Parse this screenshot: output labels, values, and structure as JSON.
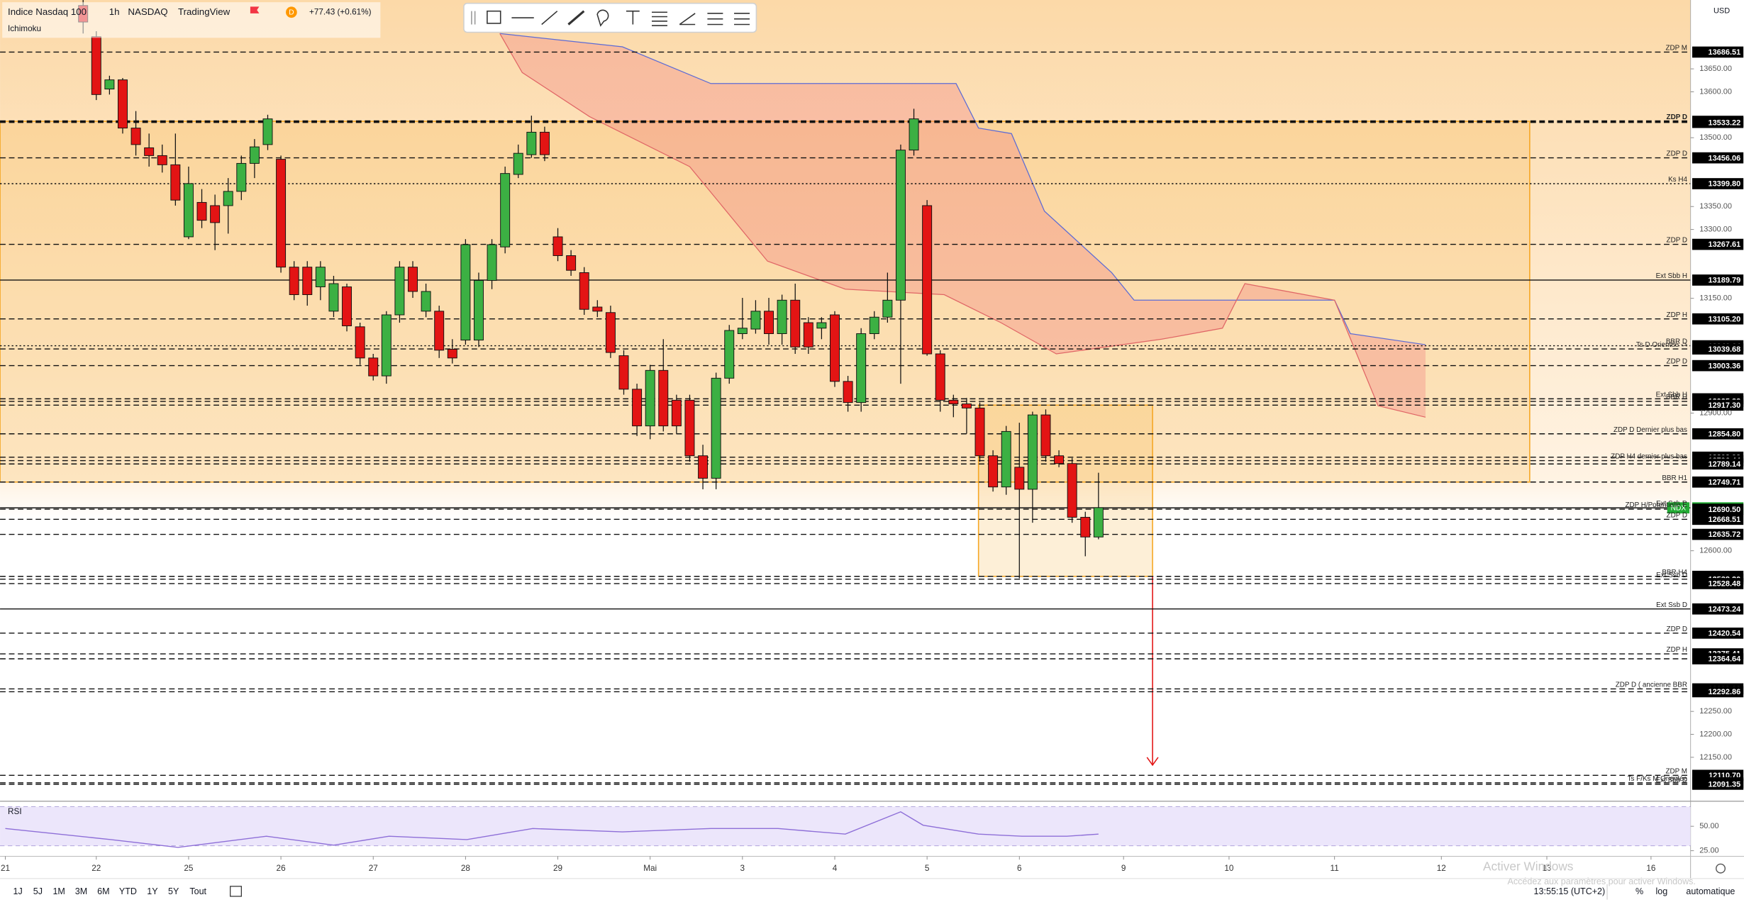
{
  "header": {
    "symbol": "Indice Nasdaq 100",
    "interval": "1h",
    "exchange": "NASDAQ",
    "source": "TradingView",
    "flag": "D",
    "change": "+77.43 (+0.61%)",
    "indicator": "Ichimoku"
  },
  "currency": "USD",
  "timeframes": [
    "1J",
    "5J",
    "1M",
    "3M",
    "6M",
    "YTD",
    "1Y",
    "5Y",
    "Tout"
  ],
  "clock": "13:55:15 (UTC+2)",
  "scale_buttons": [
    "%",
    "log",
    "automatique"
  ],
  "watermark": {
    "title": "Activer Windows",
    "text": "Accédez aux paramètres pour activer Windows."
  },
  "chart_data": [
    {
      "type": "candlestick",
      "up_color": "#3cb043",
      "down_color": "#e31414",
      "open": [
        13788,
        13720,
        13606,
        13626,
        13521,
        13478,
        13461,
        13441,
        13284,
        13359,
        13352,
        13352,
        13383,
        13444,
        13485,
        13453,
        13218,
        13218,
        13175,
        13122,
        13175,
        13088,
        13020,
        12981,
        13114,
        13218,
        13122,
        13122,
        13039,
        13059,
        13059,
        13189,
        13262,
        13420,
        13463,
        13512,
        13284,
        13243,
        13206,
        13131,
        13119,
        13025,
        12952,
        12872,
        12993,
        12928,
        12928,
        12807,
        12758,
        12976,
        13073,
        13083,
        13122,
        13073,
        13146,
        13097,
        13085,
        13114,
        12969,
        12923,
        13073,
        13109,
        13146,
        13473,
        13352,
        13029,
        12928,
        12920,
        12911,
        12807,
        12739,
        12782,
        12734,
        12896,
        12807,
        12790,
        12673,
        12630
      ],
      "high": [
        13800,
        13732,
        13635,
        13630,
        13558,
        13509,
        13485,
        13509,
        13437,
        13388,
        13376,
        13412,
        13461,
        13497,
        13550,
        13461,
        13231,
        13231,
        13231,
        13199,
        13182,
        13097,
        13029,
        13122,
        13231,
        13231,
        13182,
        13134,
        13061,
        13279,
        13206,
        13279,
        13437,
        13485,
        13548,
        13524,
        13303,
        13255,
        13218,
        13146,
        13134,
        13037,
        12964,
        13005,
        13061,
        12940,
        12940,
        12831,
        12988,
        13092,
        13151,
        13146,
        13151,
        13158,
        13182,
        13109,
        13109,
        13122,
        12981,
        13085,
        13122,
        13206,
        13485,
        13563,
        13364,
        13037,
        12940,
        12933,
        12923,
        12819,
        12872,
        12879,
        12903,
        12908,
        12819,
        12802,
        12685,
        12770
      ],
      "low": [
        13727,
        13582,
        13594,
        13509,
        13461,
        13437,
        13424,
        13352,
        13279,
        13303,
        13255,
        13291,
        13364,
        13412,
        13473,
        13206,
        13146,
        13134,
        13146,
        13109,
        13078,
        13005,
        12971,
        12964,
        13097,
        13151,
        13109,
        13020,
        13008,
        13049,
        13044,
        13170,
        13248,
        13412,
        13456,
        13449,
        13231,
        13199,
        13114,
        13109,
        13020,
        12940,
        12850,
        12843,
        12860,
        12855,
        12794,
        12734,
        12734,
        12964,
        13061,
        13073,
        13049,
        13049,
        13029,
        13029,
        13061,
        12957,
        12903,
        12903,
        13061,
        13097,
        12964,
        13461,
        13025,
        12903,
        12891,
        12855,
        12794,
        12729,
        12722,
        12540,
        12661,
        12794,
        12782,
        12661,
        12588,
        12625
      ],
      "close": [
        13752,
        13594,
        13626,
        13521,
        13485,
        13461,
        13441,
        13364,
        13400,
        13320,
        13315,
        13383,
        13444,
        13480,
        13541,
        13218,
        13158,
        13158,
        13218,
        13182,
        13090,
        13020,
        12981,
        13114,
        13218,
        13165,
        13165,
        13037,
        13020,
        13267,
        13189,
        13267,
        13422,
        13466,
        13512,
        13463,
        13243,
        13211,
        13126,
        13122,
        13032,
        12952,
        12872,
        12993,
        12872,
        12872,
        12807,
        12758,
        12976,
        13080,
        13085,
        13122,
        13073,
        13146,
        13044,
        13044,
        13097,
        12969,
        12923,
        13073,
        13109,
        13146,
        13473,
        13541,
        13029,
        12928,
        12920,
        12911,
        12807,
        12739,
        12860,
        12734,
        12896,
        12807,
        12790,
        12673,
        12630,
        12694
      ],
      "xlim": [
        -6.3,
        121.9
      ],
      "xticks": [
        {
          "value": -5.9,
          "label": "21"
        },
        {
          "value": 1.0,
          "label": "22"
        },
        {
          "value": 8.0,
          "label": "25"
        },
        {
          "value": 15.0,
          "label": "26"
        },
        {
          "value": 22.0,
          "label": "27"
        },
        {
          "value": 29.0,
          "label": "28"
        },
        {
          "value": 36.0,
          "label": "29"
        },
        {
          "value": 43.0,
          "label": "Mai"
        },
        {
          "value": 50.0,
          "label": "3"
        },
        {
          "value": 57.0,
          "label": "4"
        },
        {
          "value": 64.0,
          "label": "5"
        },
        {
          "value": 71.0,
          "label": "6"
        },
        {
          "value": 78.9,
          "label": "9"
        },
        {
          "value": 86.9,
          "label": "10"
        },
        {
          "value": 94.9,
          "label": "11"
        },
        {
          "value": 103.0,
          "label": "12"
        },
        {
          "value": 111.0,
          "label": "13"
        },
        {
          "value": 118.9,
          "label": "16"
        }
      ],
      "ylim": [
        12055,
        13800
      ],
      "yticks": [
        {
          "value": 13650,
          "label": "13650.00"
        },
        {
          "value": 13600,
          "label": "13600.00"
        },
        {
          "value": 13500,
          "label": "13500.00"
        },
        {
          "value": 13350,
          "label": "13350.00"
        },
        {
          "value": 13300,
          "label": "13300.00"
        },
        {
          "value": 13150,
          "label": "13150.00"
        },
        {
          "value": 12900,
          "label": "12900.00"
        },
        {
          "value": 12600,
          "label": "12600.00"
        },
        {
          "value": 12250,
          "label": "12250.00"
        },
        {
          "value": 12200,
          "label": "12200.00"
        },
        {
          "value": 12150,
          "label": "12150.00"
        }
      ],
      "last_tag": "NDX",
      "last_color": "#22ab34",
      "levels": [
        {
          "name": "ZDP M",
          "price": {
            "value": 13686.51,
            "label": "13686.51"
          },
          "style": "dashed"
        },
        {
          "name": "ZDP D",
          "price": {
            "value": 13535.71,
            "label": "13535.71"
          },
          "style": "bold"
        },
        {
          "price": {
            "value": 13533.22,
            "label": "13533.22"
          },
          "style": "dashed"
        },
        {
          "name": "ZDP D",
          "price": {
            "value": 13456.06,
            "label": "13456.06"
          },
          "style": "dashed"
        },
        {
          "name": "Ks H4",
          "price": {
            "value": 13399.8,
            "label": "13399.80"
          },
          "style": "dotted"
        },
        {
          "name": "ZDP D",
          "price": {
            "value": 13267.61,
            "label": "13267.61"
          },
          "style": "dashed"
        },
        {
          "name": "Ext Sbb H",
          "price": {
            "value": 13189.79,
            "label": "13189.79"
          },
          "style": "solid"
        },
        {
          "name": "ZDP H",
          "price": {
            "value": 13105.2,
            "label": "13105.20"
          },
          "style": "dashed"
        },
        {
          "name": "BBR D",
          "price": {
            "value": 13046.64,
            "label": "13046.64"
          },
          "style": "dotted"
        },
        {
          "name": "Ts D Orientée ->",
          "price": {
            "value": 13039.68,
            "label": "13039.68"
          },
          "style": "dashed"
        },
        {
          "name": "ZDP D",
          "price": {
            "value": 13003.36,
            "label": "13003.36"
          },
          "style": "dashed"
        },
        {
          "name": "Ext Sbb H",
          "price": {
            "value": 12931.08,
            "label": "12931.08"
          },
          "style": "dashed"
        },
        {
          "name": "BBR H",
          "price": {
            "value": 12925.38,
            "label": "12925.38"
          },
          "style": "dashed"
        },
        {
          "price": {
            "value": 12917.3,
            "label": "12917.30"
          },
          "style": "dashed"
        },
        {
          "name": "ZDP D Dernier plus bas",
          "price": {
            "value": 12854.8,
            "label": "12854.80"
          },
          "style": "dashed"
        },
        {
          "price": {
            "value": 12803.93,
            "label": "12803.93"
          },
          "style": "dashed"
        },
        {
          "name": "ZDP H4 dernier plus bas",
          "price": {
            "value": 12796.44,
            "label": "12796.44"
          },
          "style": "dashed"
        },
        {
          "price": {
            "value": 12789.14,
            "label": "12789.14"
          },
          "style": "dashed"
        },
        {
          "name": "BBR H1",
          "price": {
            "value": 12749.71,
            "label": "12749.71"
          },
          "style": "dashed"
        },
        {
          "name": "Ext Ssb D",
          "price": {
            "value": 12693.53,
            "label": "12693.53"
          },
          "style": "solid",
          "current": true
        },
        {
          "name": "ZDP H/Potentielle E",
          "price": {
            "value": 12690.5,
            "label": "12690.50"
          },
          "style": "dashed"
        },
        {
          "name": "ZDP D",
          "price": {
            "value": 12668.51,
            "label": "12668.51"
          },
          "style": "dashed"
        },
        {
          "price": {
            "value": 12635.72,
            "label": "12635.72"
          },
          "style": "dashed"
        },
        {
          "name": "BBR H4",
          "price": {
            "value": 12544.26,
            "label": "12544.26"
          },
          "style": "dashed"
        },
        {
          "name": "Ext Ssb D",
          "price": {
            "value": 12538.2,
            "label": "12538.20"
          },
          "style": "dashed"
        },
        {
          "price": {
            "value": 12528.48,
            "label": "12528.48"
          },
          "style": "dashed"
        },
        {
          "name": "Ext Ssb D",
          "price": {
            "value": 12473.24,
            "label": "12473.24"
          },
          "style": "solid"
        },
        {
          "name": "ZDP D",
          "price": {
            "value": 12420.54,
            "label": "12420.54"
          },
          "style": "dashed"
        },
        {
          "name": "ZDP H",
          "price": {
            "value": 12375.41,
            "label": "12375.41"
          },
          "style": "dashed"
        },
        {
          "price": {
            "value": 12364.64,
            "label": "12364.64"
          },
          "style": "dashed"
        },
        {
          "name": "ZDP D ( ancienne BBR",
          "price": {
            "value": 12299.08,
            "label": "12299.08"
          },
          "style": "dashed"
        },
        {
          "price": {
            "value": 12292.86,
            "label": "12292.86"
          },
          "style": "dashed"
        },
        {
          "name": "ZDP M",
          "price": {
            "value": 12110.7,
            "label": "12110.70"
          },
          "style": "dashed"
        },
        {
          "name": "Ts F/Ks M Orientée",
          "price": {
            "value": 12094.52,
            "label": "12094.52"
          },
          "style": "dashed"
        },
        {
          "name": "Ext Sbb D",
          "price": {
            "value": 12091.35,
            "label": "12091.35"
          },
          "style": "dashed"
        }
      ],
      "zones": [
        {
          "x": [
            -6.3,
            109.7
          ],
          "y": [
            13535.71,
            12749.71
          ],
          "color": "#f5a623"
        },
        {
          "x": [
            67.9,
            81.1
          ],
          "y": [
            12917.3,
            12544.26
          ],
          "color": "#f5a623"
        }
      ],
      "arrow": {
        "x": 81.1,
        "from": 12544.26,
        "to": 12133,
        "color": "#e31414"
      },
      "cloud": {
        "color": "#f08080",
        "upper": {
          "x": [
            31.6,
            40.9,
            47.6,
            66.2,
            67.9,
            70.4,
            72.9,
            78.0,
            79.7,
            94.9,
            96.1,
            101.8
          ],
          "values": [
            13727,
            13698,
            13618,
            13618,
            13521,
            13509,
            13340,
            13206,
            13146,
            13146,
            13073,
            13049
          ],
          "color": "#5b6bd6"
        },
        "lower": {
          "x": [
            31.6,
            33.3,
            38.4,
            46.0,
            51.9,
            57.8,
            65.3,
            69.6,
            73.8,
            81.8,
            86.4,
            88.1,
            94.9,
            98.2,
            101.8
          ],
          "values": [
            13727,
            13642,
            13546,
            13437,
            13231,
            13170,
            13158,
            13097,
            13029,
            13061,
            13085,
            13182,
            13146,
            12916,
            12891
          ],
          "color": "#e06666"
        }
      }
    },
    {
      "type": "line",
      "title": "RSI",
      "color": "#8e6fd8",
      "band": [
        30,
        70
      ],
      "band_color": "#ece6fb",
      "x": [
        -5.9,
        2.1,
        7.2,
        13.9,
        19.0,
        23.2,
        29.1,
        34.1,
        40.9,
        47.6,
        52.7,
        57.8,
        62.0,
        63.7,
        67.9,
        71.2,
        74.6,
        77.0
      ],
      "values": [
        47.7,
        36.4,
        28.4,
        39.8,
        30.7,
        39.8,
        36.4,
        47.7,
        44.3,
        47.7,
        47.7,
        42.0,
        64.8,
        51.1,
        42.0,
        39.8,
        39.8,
        42.0
      ],
      "xlim": [
        -6.3,
        121.9
      ],
      "ylim": [
        19.3,
        73.9
      ],
      "yticks": [
        {
          "value": 50,
          "label": "50.00"
        },
        {
          "value": 25,
          "label": "25.00"
        }
      ]
    }
  ]
}
